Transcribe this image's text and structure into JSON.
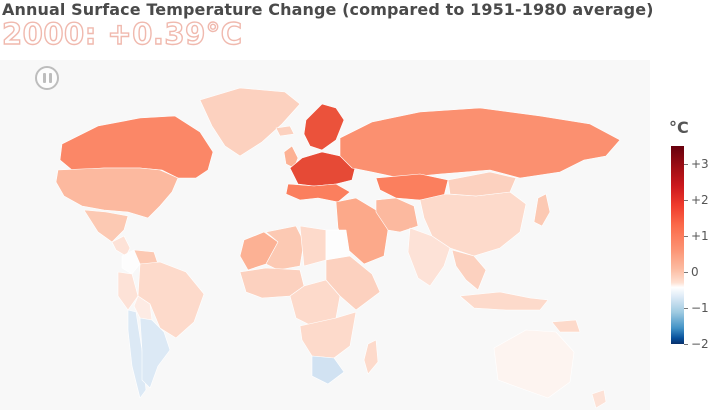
{
  "title": "Annual Surface Temperature Change (compared to 1951-1980 average)",
  "year_label": "2000: +0.39°C",
  "controls": {
    "play_pause_icon": "pause-icon"
  },
  "legend": {
    "unit": "°C",
    "ticks": [
      "+3",
      "+2",
      "+1",
      "0",
      "−1",
      "−2"
    ],
    "tick_values": [
      3,
      2,
      1,
      0,
      -1,
      -2
    ],
    "range": [
      -2,
      3.5
    ]
  },
  "colors": {
    "positive_max": "#67000d",
    "positive_mid": "#fb6a4a",
    "positive_low": "#fcbba1",
    "zero": "#ffffff",
    "negative_low": "#deebf7",
    "negative_max": "#08306b",
    "map_background": "#f8f8f8"
  },
  "map_data": {
    "type": "choropleth",
    "year": 2000,
    "global_change": 0.39,
    "regions": [
      {
        "region": "Canada",
        "change": 1.4
      },
      {
        "region": "United States",
        "change": 0.8
      },
      {
        "region": "Mexico",
        "change": 0.6
      },
      {
        "region": "Central America",
        "change": 0.3
      },
      {
        "region": "Colombia",
        "change": 0.0
      },
      {
        "region": "Venezuela",
        "change": 0.6
      },
      {
        "region": "Brazil",
        "change": 0.4
      },
      {
        "region": "Peru",
        "change": 0.3
      },
      {
        "region": "Bolivia",
        "change": 0.2
      },
      {
        "region": "Chile",
        "change": -0.3
      },
      {
        "region": "Argentina",
        "change": -0.3
      },
      {
        "region": "Greenland",
        "change": 0.5
      },
      {
        "region": "Iceland",
        "change": 0.5
      },
      {
        "region": "United Kingdom",
        "change": 0.9
      },
      {
        "region": "Scandinavia",
        "change": 2.1
      },
      {
        "region": "Central Europe",
        "change": 2.2
      },
      {
        "region": "Southern Europe",
        "change": 1.5
      },
      {
        "region": "Russia",
        "change": 1.3
      },
      {
        "region": "Kazakhstan",
        "change": 1.5
      },
      {
        "region": "Middle East",
        "change": 1.0
      },
      {
        "region": "Iran",
        "change": 0.8
      },
      {
        "region": "China",
        "change": 0.4
      },
      {
        "region": "Mongolia",
        "change": 0.5
      },
      {
        "region": "India",
        "change": 0.3
      },
      {
        "region": "Southeast Asia",
        "change": 0.5
      },
      {
        "region": "Japan",
        "change": 0.6
      },
      {
        "region": "Indonesia",
        "change": 0.4
      },
      {
        "region": "Morocco",
        "change": 0.9
      },
      {
        "region": "Algeria",
        "change": 0.6
      },
      {
        "region": "Libya",
        "change": 0.4
      },
      {
        "region": "Egypt",
        "change": 0.0
      },
      {
        "region": "West Africa",
        "change": 0.5
      },
      {
        "region": "Central Africa",
        "change": 0.4
      },
      {
        "region": "East Africa",
        "change": 0.5
      },
      {
        "region": "Southern Africa",
        "change": 0.4
      },
      {
        "region": "South Africa",
        "change": -0.4
      },
      {
        "region": "Madagascar",
        "change": 0.4
      },
      {
        "region": "Australia",
        "change": 0.1
      },
      {
        "region": "New Zealand",
        "change": 0.3
      },
      {
        "region": "Papua New Guinea",
        "change": 0.4
      }
    ]
  }
}
